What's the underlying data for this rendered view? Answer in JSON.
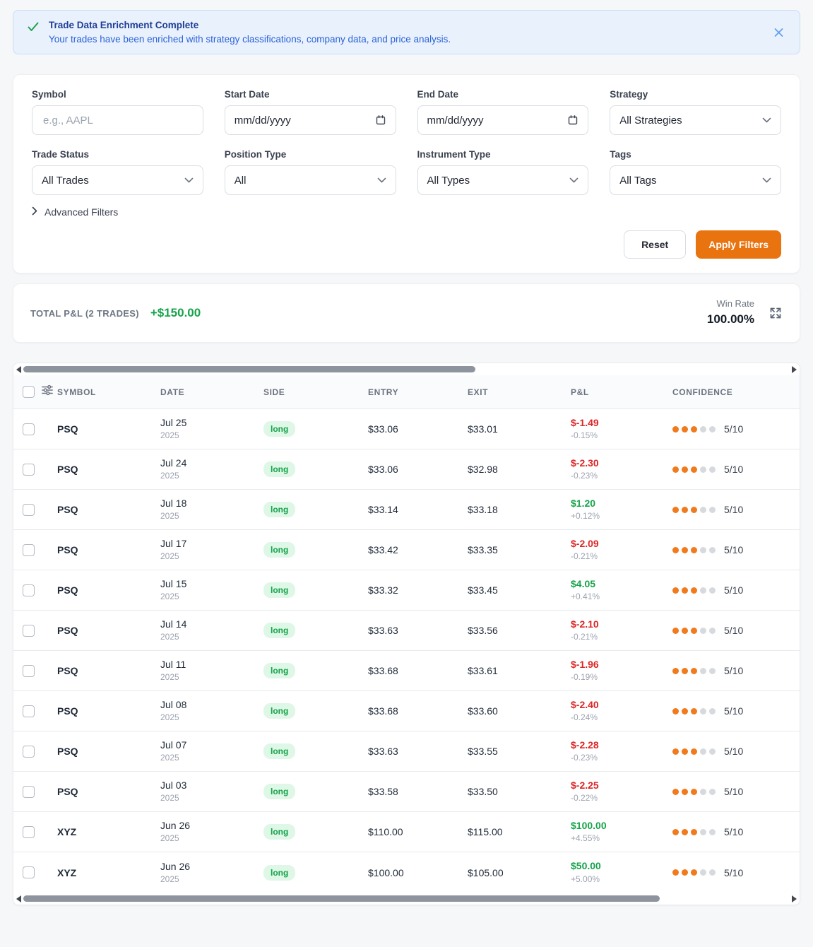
{
  "colors": {
    "accent_orange": "#e8730f",
    "positive_green": "#16a34a",
    "negative_red": "#dc2626",
    "info_blue": "#2b63d9"
  },
  "banner": {
    "title": "Trade Data Enrichment Complete",
    "message": "Your trades have been enriched with strategy classifications, company data, and price analysis."
  },
  "filters": {
    "fields": [
      {
        "label": "Symbol",
        "type": "text",
        "placeholder": "e.g., AAPL"
      },
      {
        "label": "Start Date",
        "type": "date",
        "value": "mm/dd/yyyy"
      },
      {
        "label": "End Date",
        "type": "date",
        "value": "mm/dd/yyyy"
      },
      {
        "label": "Strategy",
        "type": "select",
        "value": "All Strategies"
      },
      {
        "label": "Trade Status",
        "type": "select",
        "value": "All Trades"
      },
      {
        "label": "Position Type",
        "type": "select",
        "value": "All"
      },
      {
        "label": "Instrument Type",
        "type": "select",
        "value": "All Types"
      },
      {
        "label": "Tags",
        "type": "select",
        "value": "All Tags"
      }
    ],
    "advanced_label": "Advanced Filters",
    "reset_label": "Reset",
    "apply_label": "Apply Filters"
  },
  "summary": {
    "total_label": "TOTAL P&L (2 TRADES)",
    "total_value": "+$150.00",
    "win_rate_label": "Win Rate",
    "win_rate_value": "100.00%"
  },
  "table": {
    "columns": [
      "SYMBOL",
      "DATE",
      "SIDE",
      "ENTRY",
      "EXIT",
      "P&L",
      "CONFIDENCE"
    ],
    "rows": [
      {
        "symbol": "PSQ",
        "date_day": "Jul 25",
        "date_year": "2025",
        "side": "long",
        "entry": "$33.06",
        "exit": "$33.01",
        "pnl": "$-1.49",
        "pnl_pct": "-0.15%",
        "pnl_dir": "neg",
        "confidence": "5/10",
        "dots_filled": 3,
        "dots_total": 5
      },
      {
        "symbol": "PSQ",
        "date_day": "Jul 24",
        "date_year": "2025",
        "side": "long",
        "entry": "$33.06",
        "exit": "$32.98",
        "pnl": "$-2.30",
        "pnl_pct": "-0.23%",
        "pnl_dir": "neg",
        "confidence": "5/10",
        "dots_filled": 3,
        "dots_total": 5
      },
      {
        "symbol": "PSQ",
        "date_day": "Jul 18",
        "date_year": "2025",
        "side": "long",
        "entry": "$33.14",
        "exit": "$33.18",
        "pnl": "$1.20",
        "pnl_pct": "+0.12%",
        "pnl_dir": "pos",
        "confidence": "5/10",
        "dots_filled": 3,
        "dots_total": 5
      },
      {
        "symbol": "PSQ",
        "date_day": "Jul 17",
        "date_year": "2025",
        "side": "long",
        "entry": "$33.42",
        "exit": "$33.35",
        "pnl": "$-2.09",
        "pnl_pct": "-0.21%",
        "pnl_dir": "neg",
        "confidence": "5/10",
        "dots_filled": 3,
        "dots_total": 5
      },
      {
        "symbol": "PSQ",
        "date_day": "Jul 15",
        "date_year": "2025",
        "side": "long",
        "entry": "$33.32",
        "exit": "$33.45",
        "pnl": "$4.05",
        "pnl_pct": "+0.41%",
        "pnl_dir": "pos",
        "confidence": "5/10",
        "dots_filled": 3,
        "dots_total": 5
      },
      {
        "symbol": "PSQ",
        "date_day": "Jul 14",
        "date_year": "2025",
        "side": "long",
        "entry": "$33.63",
        "exit": "$33.56",
        "pnl": "$-2.10",
        "pnl_pct": "-0.21%",
        "pnl_dir": "neg",
        "confidence": "5/10",
        "dots_filled": 3,
        "dots_total": 5
      },
      {
        "symbol": "PSQ",
        "date_day": "Jul 11",
        "date_year": "2025",
        "side": "long",
        "entry": "$33.68",
        "exit": "$33.61",
        "pnl": "$-1.96",
        "pnl_pct": "-0.19%",
        "pnl_dir": "neg",
        "confidence": "5/10",
        "dots_filled": 3,
        "dots_total": 5
      },
      {
        "symbol": "PSQ",
        "date_day": "Jul 08",
        "date_year": "2025",
        "side": "long",
        "entry": "$33.68",
        "exit": "$33.60",
        "pnl": "$-2.40",
        "pnl_pct": "-0.24%",
        "pnl_dir": "neg",
        "confidence": "5/10",
        "dots_filled": 3,
        "dots_total": 5
      },
      {
        "symbol": "PSQ",
        "date_day": "Jul 07",
        "date_year": "2025",
        "side": "long",
        "entry": "$33.63",
        "exit": "$33.55",
        "pnl": "$-2.28",
        "pnl_pct": "-0.23%",
        "pnl_dir": "neg",
        "confidence": "5/10",
        "dots_filled": 3,
        "dots_total": 5
      },
      {
        "symbol": "PSQ",
        "date_day": "Jul 03",
        "date_year": "2025",
        "side": "long",
        "entry": "$33.58",
        "exit": "$33.50",
        "pnl": "$-2.25",
        "pnl_pct": "-0.22%",
        "pnl_dir": "neg",
        "confidence": "5/10",
        "dots_filled": 3,
        "dots_total": 5
      },
      {
        "symbol": "XYZ",
        "date_day": "Jun 26",
        "date_year": "2025",
        "side": "long",
        "entry": "$110.00",
        "exit": "$115.00",
        "pnl": "$100.00",
        "pnl_pct": "+4.55%",
        "pnl_dir": "pos",
        "confidence": "5/10",
        "dots_filled": 3,
        "dots_total": 5
      },
      {
        "symbol": "XYZ",
        "date_day": "Jun 26",
        "date_year": "2025",
        "side": "long",
        "entry": "$100.00",
        "exit": "$105.00",
        "pnl": "$50.00",
        "pnl_pct": "+5.00%",
        "pnl_dir": "pos",
        "confidence": "5/10",
        "dots_filled": 3,
        "dots_total": 5
      }
    ]
  }
}
